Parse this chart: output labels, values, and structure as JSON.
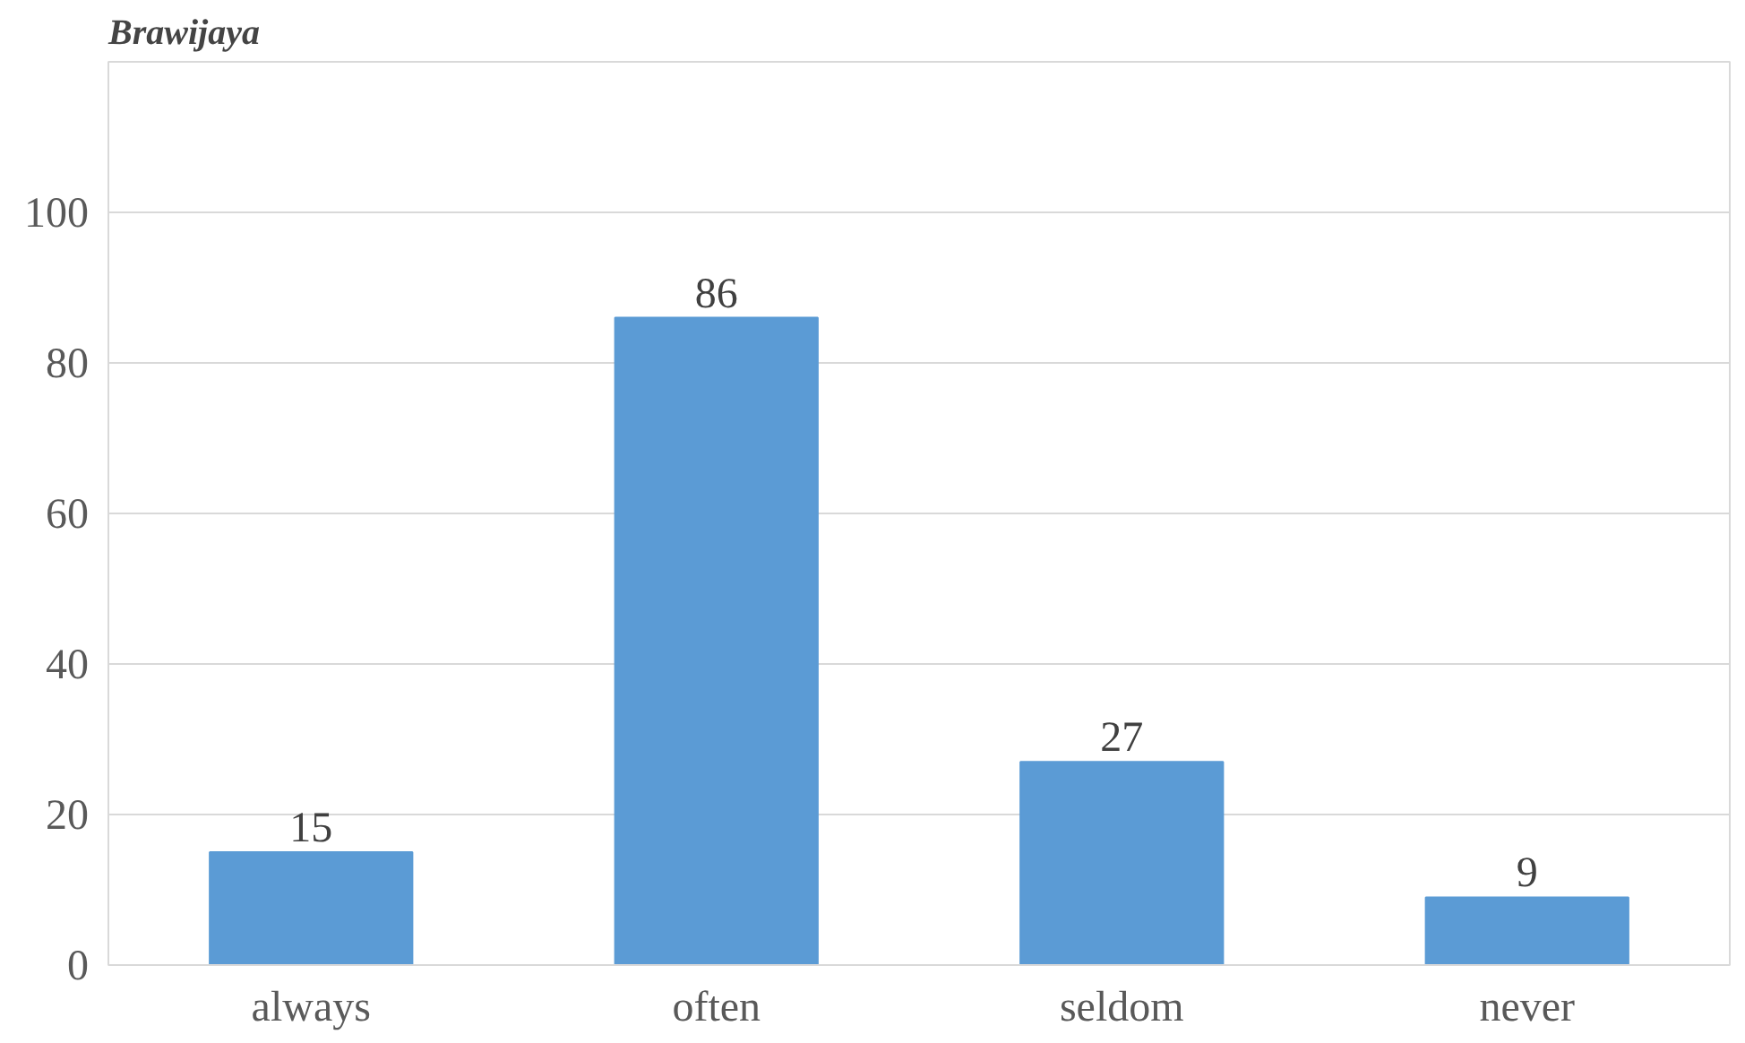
{
  "chart_data": {
    "type": "bar",
    "title": "Brawijaya",
    "categories": [
      "always",
      "often",
      "seldom",
      "never"
    ],
    "values": [
      15,
      86,
      27,
      9
    ],
    "color": "#5b9bd5",
    "ylim": [
      0,
      120
    ],
    "yticks": [
      0,
      20,
      40,
      60,
      80,
      100
    ],
    "grid": "y",
    "data_labels": true
  }
}
